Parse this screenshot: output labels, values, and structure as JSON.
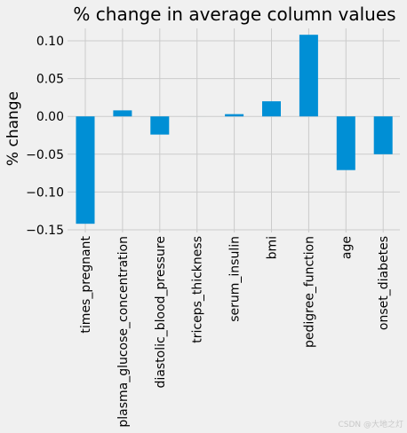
{
  "chart_data": {
    "type": "bar",
    "title": "% change in average column values",
    "xlabel": "",
    "ylabel": "% change",
    "categories": [
      "times_pregnant",
      "plasma_glucose_concentration",
      "diastolic_blood_pressure",
      "triceps_thickness",
      "serum_insulin",
      "bmi",
      "pedigree_function",
      "age",
      "onset_diabetes"
    ],
    "values": [
      -0.142,
      0.008,
      -0.024,
      0.0,
      0.003,
      0.02,
      0.108,
      -0.071,
      -0.05
    ],
    "ylim": [
      -0.15,
      0.12
    ],
    "yticks": [
      -0.15,
      -0.1,
      -0.05,
      0.0,
      0.05,
      0.1
    ],
    "ytick_labels": [
      "−0.15",
      "−0.10",
      "−0.05",
      "0.00",
      "0.05",
      "0.10"
    ],
    "grid": true,
    "legend": "none"
  },
  "colors": {
    "background": "#f0f0f0",
    "bar": "#008fd5",
    "grid": "#cbcbcb",
    "text": "#000000"
  },
  "watermark": "CSDN @大地之灯"
}
